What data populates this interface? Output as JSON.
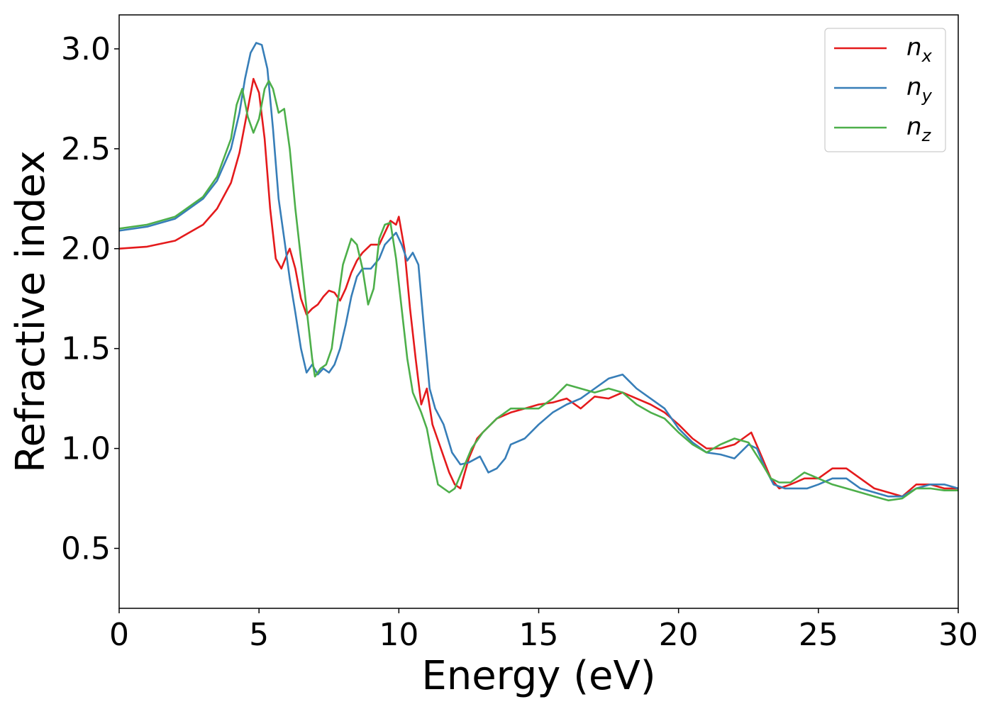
{
  "chart_data": {
    "type": "line",
    "title": "",
    "xlabel": "Energy (eV)",
    "ylabel": "Refractive index",
    "xlim": [
      0,
      30
    ],
    "ylim": [
      0.2,
      3.17
    ],
    "xticks": [
      0,
      5,
      10,
      15,
      20,
      25,
      30
    ],
    "xtick_labels": [
      "0",
      "5",
      "10",
      "15",
      "20",
      "25",
      "30"
    ],
    "yticks": [
      0.5,
      1.0,
      1.5,
      2.0,
      2.5,
      3.0
    ],
    "ytick_labels": [
      "0.5",
      "1.0",
      "1.5",
      "2.0",
      "2.5",
      "3.0"
    ],
    "grid": false,
    "legend_position": "top-right",
    "series": [
      {
        "name": "n_x",
        "label_main": "n",
        "label_sub": "x",
        "color": "#e41a1c",
        "points": [
          [
            0,
            2.0
          ],
          [
            1,
            2.01
          ],
          [
            2,
            2.04
          ],
          [
            3,
            2.12
          ],
          [
            3.5,
            2.2
          ],
          [
            4,
            2.33
          ],
          [
            4.3,
            2.48
          ],
          [
            4.6,
            2.7
          ],
          [
            4.8,
            2.85
          ],
          [
            5.0,
            2.78
          ],
          [
            5.2,
            2.55
          ],
          [
            5.4,
            2.2
          ],
          [
            5.6,
            1.95
          ],
          [
            5.8,
            1.9
          ],
          [
            6.0,
            1.97
          ],
          [
            6.1,
            2.0
          ],
          [
            6.3,
            1.9
          ],
          [
            6.5,
            1.75
          ],
          [
            6.7,
            1.67
          ],
          [
            6.9,
            1.7
          ],
          [
            7.1,
            1.72
          ],
          [
            7.3,
            1.76
          ],
          [
            7.5,
            1.79
          ],
          [
            7.7,
            1.78
          ],
          [
            7.9,
            1.74
          ],
          [
            8.1,
            1.8
          ],
          [
            8.3,
            1.88
          ],
          [
            8.5,
            1.94
          ],
          [
            8.7,
            1.98
          ],
          [
            9.0,
            2.02
          ],
          [
            9.3,
            2.02
          ],
          [
            9.5,
            2.08
          ],
          [
            9.7,
            2.14
          ],
          [
            9.9,
            2.12
          ],
          [
            10.0,
            2.16
          ],
          [
            10.2,
            2.0
          ],
          [
            10.4,
            1.7
          ],
          [
            10.6,
            1.45
          ],
          [
            10.8,
            1.22
          ],
          [
            11.0,
            1.3
          ],
          [
            11.2,
            1.12
          ],
          [
            11.5,
            1.0
          ],
          [
            11.8,
            0.88
          ],
          [
            12.0,
            0.82
          ],
          [
            12.2,
            0.8
          ],
          [
            12.5,
            0.95
          ],
          [
            12.8,
            1.05
          ],
          [
            13.0,
            1.08
          ],
          [
            13.5,
            1.15
          ],
          [
            14.0,
            1.18
          ],
          [
            14.5,
            1.2
          ],
          [
            15.0,
            1.22
          ],
          [
            15.5,
            1.23
          ],
          [
            16.0,
            1.25
          ],
          [
            16.5,
            1.2
          ],
          [
            17.0,
            1.26
          ],
          [
            17.5,
            1.25
          ],
          [
            18.0,
            1.28
          ],
          [
            18.5,
            1.25
          ],
          [
            19.0,
            1.22
          ],
          [
            19.5,
            1.18
          ],
          [
            20.0,
            1.12
          ],
          [
            20.5,
            1.05
          ],
          [
            21.0,
            1.0
          ],
          [
            21.5,
            1.0
          ],
          [
            22.0,
            1.02
          ],
          [
            22.3,
            1.05
          ],
          [
            22.6,
            1.08
          ],
          [
            23.0,
            0.95
          ],
          [
            23.3,
            0.85
          ],
          [
            23.6,
            0.8
          ],
          [
            24.0,
            0.82
          ],
          [
            24.5,
            0.85
          ],
          [
            25.0,
            0.85
          ],
          [
            25.5,
            0.9
          ],
          [
            26.0,
            0.9
          ],
          [
            26.5,
            0.85
          ],
          [
            27.0,
            0.8
          ],
          [
            27.5,
            0.78
          ],
          [
            28.0,
            0.76
          ],
          [
            28.5,
            0.82
          ],
          [
            29.0,
            0.82
          ],
          [
            29.5,
            0.8
          ],
          [
            30.0,
            0.8
          ]
        ]
      },
      {
        "name": "n_y",
        "label_main": "n",
        "label_sub": "y",
        "color": "#377eb8",
        "points": [
          [
            0,
            2.09
          ],
          [
            1,
            2.11
          ],
          [
            2,
            2.15
          ],
          [
            3,
            2.25
          ],
          [
            3.5,
            2.34
          ],
          [
            4,
            2.5
          ],
          [
            4.3,
            2.68
          ],
          [
            4.5,
            2.85
          ],
          [
            4.7,
            2.98
          ],
          [
            4.9,
            3.03
          ],
          [
            5.1,
            3.02
          ],
          [
            5.3,
            2.9
          ],
          [
            5.5,
            2.6
          ],
          [
            5.7,
            2.25
          ],
          [
            5.9,
            2.05
          ],
          [
            6.1,
            1.85
          ],
          [
            6.3,
            1.68
          ],
          [
            6.5,
            1.5
          ],
          [
            6.7,
            1.38
          ],
          [
            6.9,
            1.42
          ],
          [
            7.1,
            1.37
          ],
          [
            7.3,
            1.4
          ],
          [
            7.5,
            1.38
          ],
          [
            7.7,
            1.42
          ],
          [
            7.9,
            1.5
          ],
          [
            8.1,
            1.62
          ],
          [
            8.3,
            1.76
          ],
          [
            8.5,
            1.86
          ],
          [
            8.7,
            1.9
          ],
          [
            9.0,
            1.9
          ],
          [
            9.3,
            1.95
          ],
          [
            9.5,
            2.02
          ],
          [
            9.7,
            2.05
          ],
          [
            9.9,
            2.08
          ],
          [
            10.1,
            2.02
          ],
          [
            10.3,
            1.94
          ],
          [
            10.5,
            1.98
          ],
          [
            10.7,
            1.92
          ],
          [
            10.9,
            1.6
          ],
          [
            11.1,
            1.3
          ],
          [
            11.3,
            1.2
          ],
          [
            11.6,
            1.12
          ],
          [
            11.9,
            0.98
          ],
          [
            12.2,
            0.92
          ],
          [
            12.5,
            0.93
          ],
          [
            12.9,
            0.96
          ],
          [
            13.2,
            0.88
          ],
          [
            13.5,
            0.9
          ],
          [
            13.8,
            0.95
          ],
          [
            14.0,
            1.02
          ],
          [
            14.5,
            1.05
          ],
          [
            15.0,
            1.12
          ],
          [
            15.5,
            1.18
          ],
          [
            16.0,
            1.22
          ],
          [
            16.5,
            1.25
          ],
          [
            17.0,
            1.3
          ],
          [
            17.5,
            1.35
          ],
          [
            18.0,
            1.37
          ],
          [
            18.5,
            1.3
          ],
          [
            19.0,
            1.25
          ],
          [
            19.5,
            1.2
          ],
          [
            20.0,
            1.1
          ],
          [
            20.5,
            1.03
          ],
          [
            21.0,
            0.98
          ],
          [
            21.5,
            0.97
          ],
          [
            22.0,
            0.95
          ],
          [
            22.5,
            1.02
          ],
          [
            22.8,
            1.0
          ],
          [
            23.1,
            0.9
          ],
          [
            23.4,
            0.82
          ],
          [
            23.8,
            0.8
          ],
          [
            24.2,
            0.8
          ],
          [
            24.6,
            0.8
          ],
          [
            25.0,
            0.82
          ],
          [
            25.5,
            0.85
          ],
          [
            26.0,
            0.85
          ],
          [
            26.5,
            0.8
          ],
          [
            27.0,
            0.78
          ],
          [
            27.5,
            0.76
          ],
          [
            28.0,
            0.76
          ],
          [
            28.5,
            0.8
          ],
          [
            29.0,
            0.82
          ],
          [
            29.5,
            0.82
          ],
          [
            30.0,
            0.8
          ]
        ]
      },
      {
        "name": "n_z",
        "label_main": "n",
        "label_sub": "z",
        "color": "#4daf4a",
        "points": [
          [
            0,
            2.1
          ],
          [
            1,
            2.12
          ],
          [
            2,
            2.16
          ],
          [
            3,
            2.26
          ],
          [
            3.5,
            2.36
          ],
          [
            4.0,
            2.55
          ],
          [
            4.2,
            2.72
          ],
          [
            4.4,
            2.8
          ],
          [
            4.6,
            2.66
          ],
          [
            4.8,
            2.58
          ],
          [
            5.0,
            2.65
          ],
          [
            5.2,
            2.8
          ],
          [
            5.35,
            2.84
          ],
          [
            5.5,
            2.8
          ],
          [
            5.7,
            2.68
          ],
          [
            5.9,
            2.7
          ],
          [
            6.1,
            2.5
          ],
          [
            6.3,
            2.2
          ],
          [
            6.5,
            1.95
          ],
          [
            6.7,
            1.7
          ],
          [
            6.9,
            1.45
          ],
          [
            7.0,
            1.36
          ],
          [
            7.2,
            1.4
          ],
          [
            7.4,
            1.42
          ],
          [
            7.6,
            1.5
          ],
          [
            7.8,
            1.72
          ],
          [
            8.0,
            1.92
          ],
          [
            8.3,
            2.05
          ],
          [
            8.5,
            2.02
          ],
          [
            8.7,
            1.9
          ],
          [
            8.9,
            1.72
          ],
          [
            9.1,
            1.8
          ],
          [
            9.3,
            2.05
          ],
          [
            9.5,
            2.12
          ],
          [
            9.7,
            2.13
          ],
          [
            9.9,
            1.95
          ],
          [
            10.1,
            1.7
          ],
          [
            10.3,
            1.45
          ],
          [
            10.5,
            1.28
          ],
          [
            10.8,
            1.18
          ],
          [
            11.0,
            1.1
          ],
          [
            11.2,
            0.95
          ],
          [
            11.4,
            0.82
          ],
          [
            11.6,
            0.8
          ],
          [
            11.8,
            0.78
          ],
          [
            12.0,
            0.8
          ],
          [
            12.3,
            0.9
          ],
          [
            12.6,
            1.0
          ],
          [
            13.0,
            1.08
          ],
          [
            13.5,
            1.15
          ],
          [
            14.0,
            1.2
          ],
          [
            14.5,
            1.2
          ],
          [
            15.0,
            1.2
          ],
          [
            15.5,
            1.25
          ],
          [
            16.0,
            1.32
          ],
          [
            16.5,
            1.3
          ],
          [
            17.0,
            1.28
          ],
          [
            17.5,
            1.3
          ],
          [
            18.0,
            1.28
          ],
          [
            18.5,
            1.22
          ],
          [
            19.0,
            1.18
          ],
          [
            19.5,
            1.15
          ],
          [
            20.0,
            1.08
          ],
          [
            20.5,
            1.02
          ],
          [
            21.0,
            0.98
          ],
          [
            21.5,
            1.02
          ],
          [
            22.0,
            1.05
          ],
          [
            22.5,
            1.03
          ],
          [
            23.0,
            0.92
          ],
          [
            23.3,
            0.85
          ],
          [
            23.6,
            0.83
          ],
          [
            24.0,
            0.83
          ],
          [
            24.5,
            0.88
          ],
          [
            25.0,
            0.85
          ],
          [
            25.5,
            0.82
          ],
          [
            26.0,
            0.8
          ],
          [
            26.5,
            0.78
          ],
          [
            27.0,
            0.76
          ],
          [
            27.5,
            0.74
          ],
          [
            28.0,
            0.75
          ],
          [
            28.5,
            0.8
          ],
          [
            29.0,
            0.8
          ],
          [
            29.5,
            0.79
          ],
          [
            30.0,
            0.79
          ]
        ]
      }
    ]
  }
}
